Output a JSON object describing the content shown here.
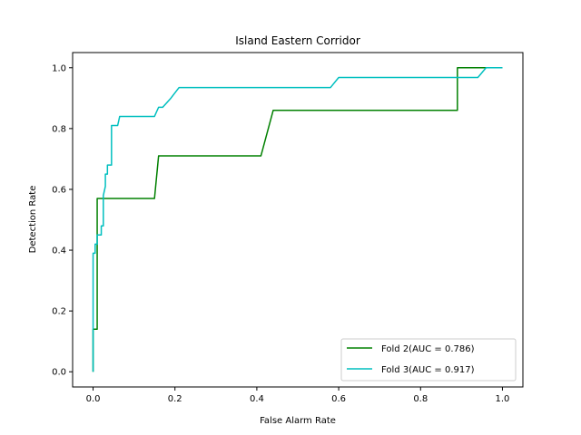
{
  "chart_data": {
    "type": "line",
    "title": "Island Eastern Corridor",
    "xlabel": "False Alarm Rate",
    "ylabel": "Detection Rate",
    "xlim": [
      -0.05,
      1.05
    ],
    "ylim": [
      -0.05,
      1.05
    ],
    "x_ticks": [
      0.0,
      0.2,
      0.4,
      0.6,
      0.8,
      1.0
    ],
    "y_ticks": [
      0.0,
      0.2,
      0.4,
      0.6,
      0.8,
      1.0
    ],
    "x_tick_labels": [
      "0.0",
      "0.2",
      "0.4",
      "0.6",
      "0.8",
      "1.0"
    ],
    "y_tick_labels": [
      "0.0",
      "0.2",
      "0.4",
      "0.6",
      "0.8",
      "1.0"
    ],
    "grid": false,
    "legend_position": "lower-right",
    "series": [
      {
        "name": "Fold 2(AUC = 0.786)",
        "color": "#008000",
        "x": [
          0.0,
          0.0,
          0.0,
          0.0,
          0.01,
          0.01,
          0.15,
          0.16,
          0.41,
          0.44,
          0.89,
          0.89,
          1.0
        ],
        "y": [
          0.0,
          0.14,
          0.14,
          0.14,
          0.14,
          0.57,
          0.57,
          0.71,
          0.71,
          0.86,
          0.86,
          1.0,
          1.0
        ]
      },
      {
        "name": "Fold 3(AUC = 0.917)",
        "color": "#00bfbf",
        "x": [
          0.0,
          0.0,
          0.0,
          0.0,
          0.005,
          0.005,
          0.01,
          0.01,
          0.015,
          0.02,
          0.02,
          0.025,
          0.025,
          0.03,
          0.03,
          0.035,
          0.035,
          0.04,
          0.045,
          0.045,
          0.05,
          0.06,
          0.065,
          0.08,
          0.15,
          0.16,
          0.17,
          0.19,
          0.21,
          0.58,
          0.6,
          0.94,
          0.96,
          1.0
        ],
        "y": [
          0.0,
          0.3,
          0.35,
          0.39,
          0.39,
          0.42,
          0.42,
          0.45,
          0.45,
          0.45,
          0.48,
          0.48,
          0.58,
          0.61,
          0.65,
          0.65,
          0.68,
          0.68,
          0.68,
          0.81,
          0.81,
          0.81,
          0.84,
          0.84,
          0.84,
          0.87,
          0.87,
          0.9,
          0.935,
          0.935,
          0.968,
          0.968,
          1.0,
          1.0
        ]
      }
    ]
  }
}
